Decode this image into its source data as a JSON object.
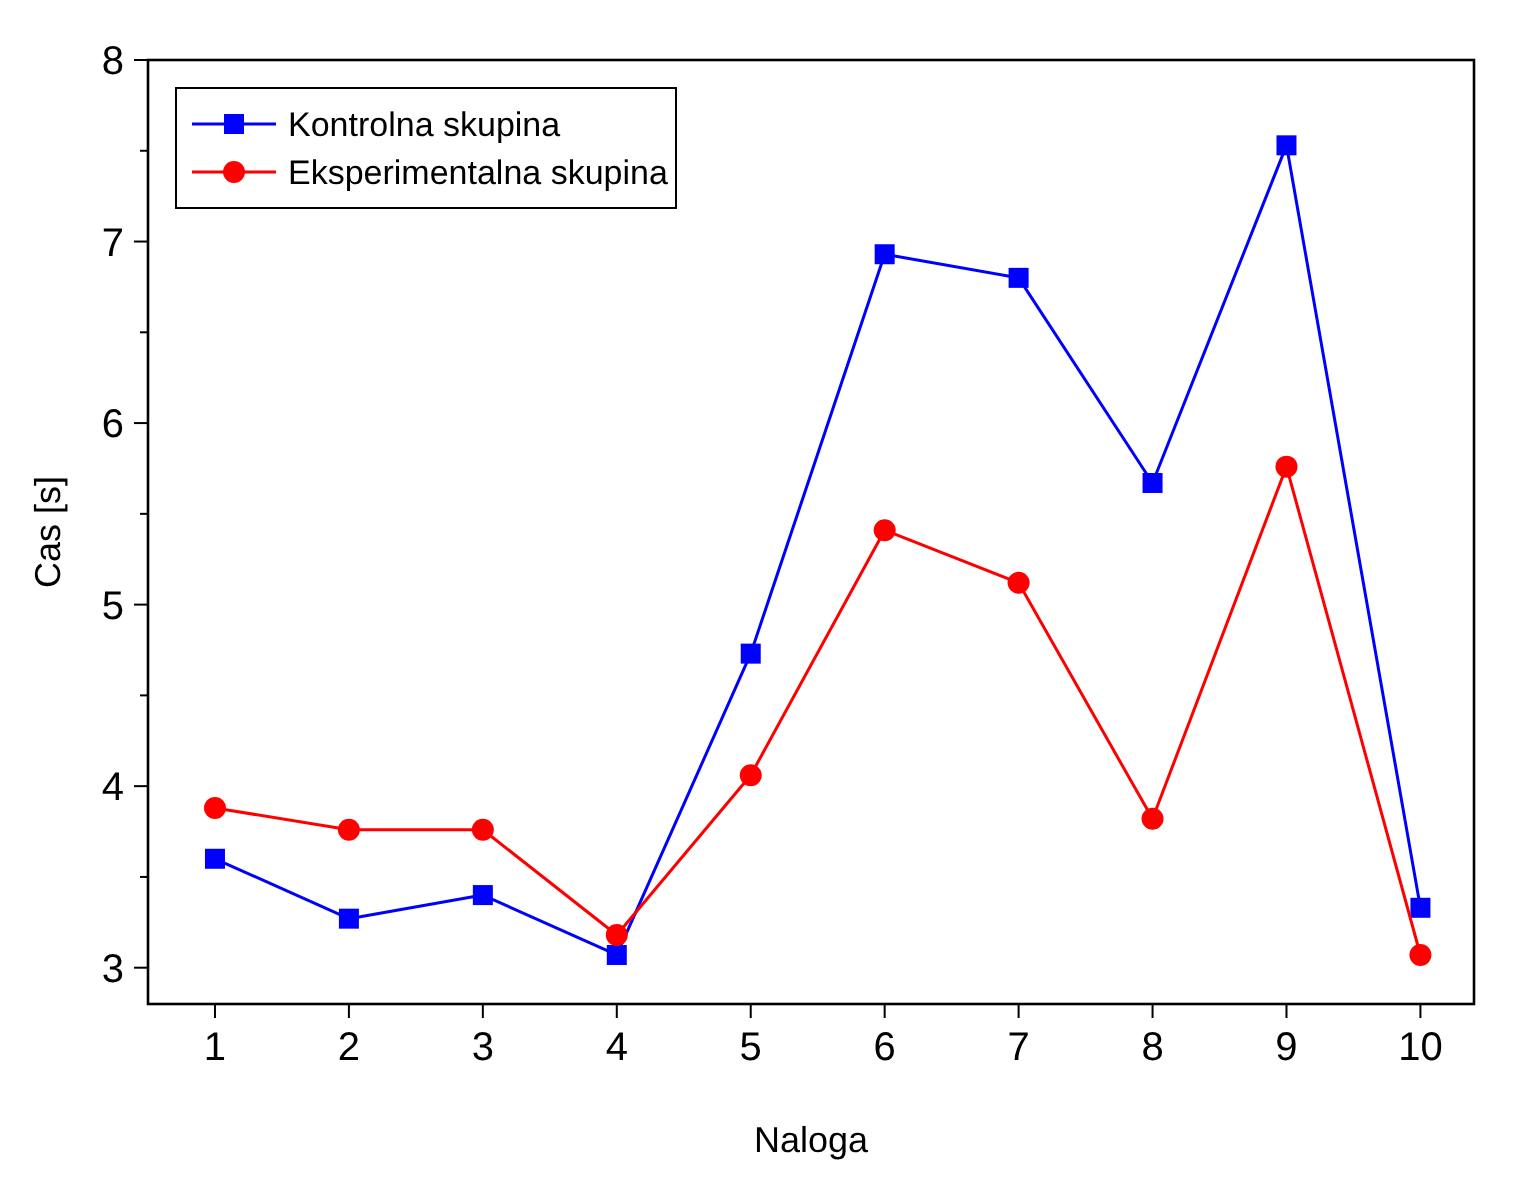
{
  "chart_data": {
    "type": "line",
    "xlabel": "Naloga",
    "ylabel": "Cas [s]",
    "x": [
      1,
      2,
      3,
      4,
      5,
      6,
      7,
      8,
      9,
      10
    ],
    "xlim": [
      0.5,
      10.4
    ],
    "xticks": [
      1,
      2,
      3,
      4,
      5,
      6,
      7,
      8,
      9,
      10
    ],
    "ylim": [
      2.8,
      8
    ],
    "yticks": [
      3,
      4,
      5,
      6,
      7,
      8
    ],
    "grid": false,
    "legend": "top left",
    "line_style": "solid",
    "series": [
      {
        "name": "Kontrolna skupina",
        "color": "#0000ff",
        "marker": "square",
        "values": [
          3.6,
          3.27,
          3.4,
          3.07,
          4.73,
          6.93,
          6.8,
          5.67,
          7.53,
          3.33
        ]
      },
      {
        "name": "Eksperimentalna skupina",
        "color": "#ff0000",
        "marker": "circle",
        "values": [
          3.88,
          3.76,
          3.76,
          3.18,
          4.06,
          5.41,
          5.12,
          3.82,
          5.76,
          3.07
        ]
      }
    ]
  }
}
